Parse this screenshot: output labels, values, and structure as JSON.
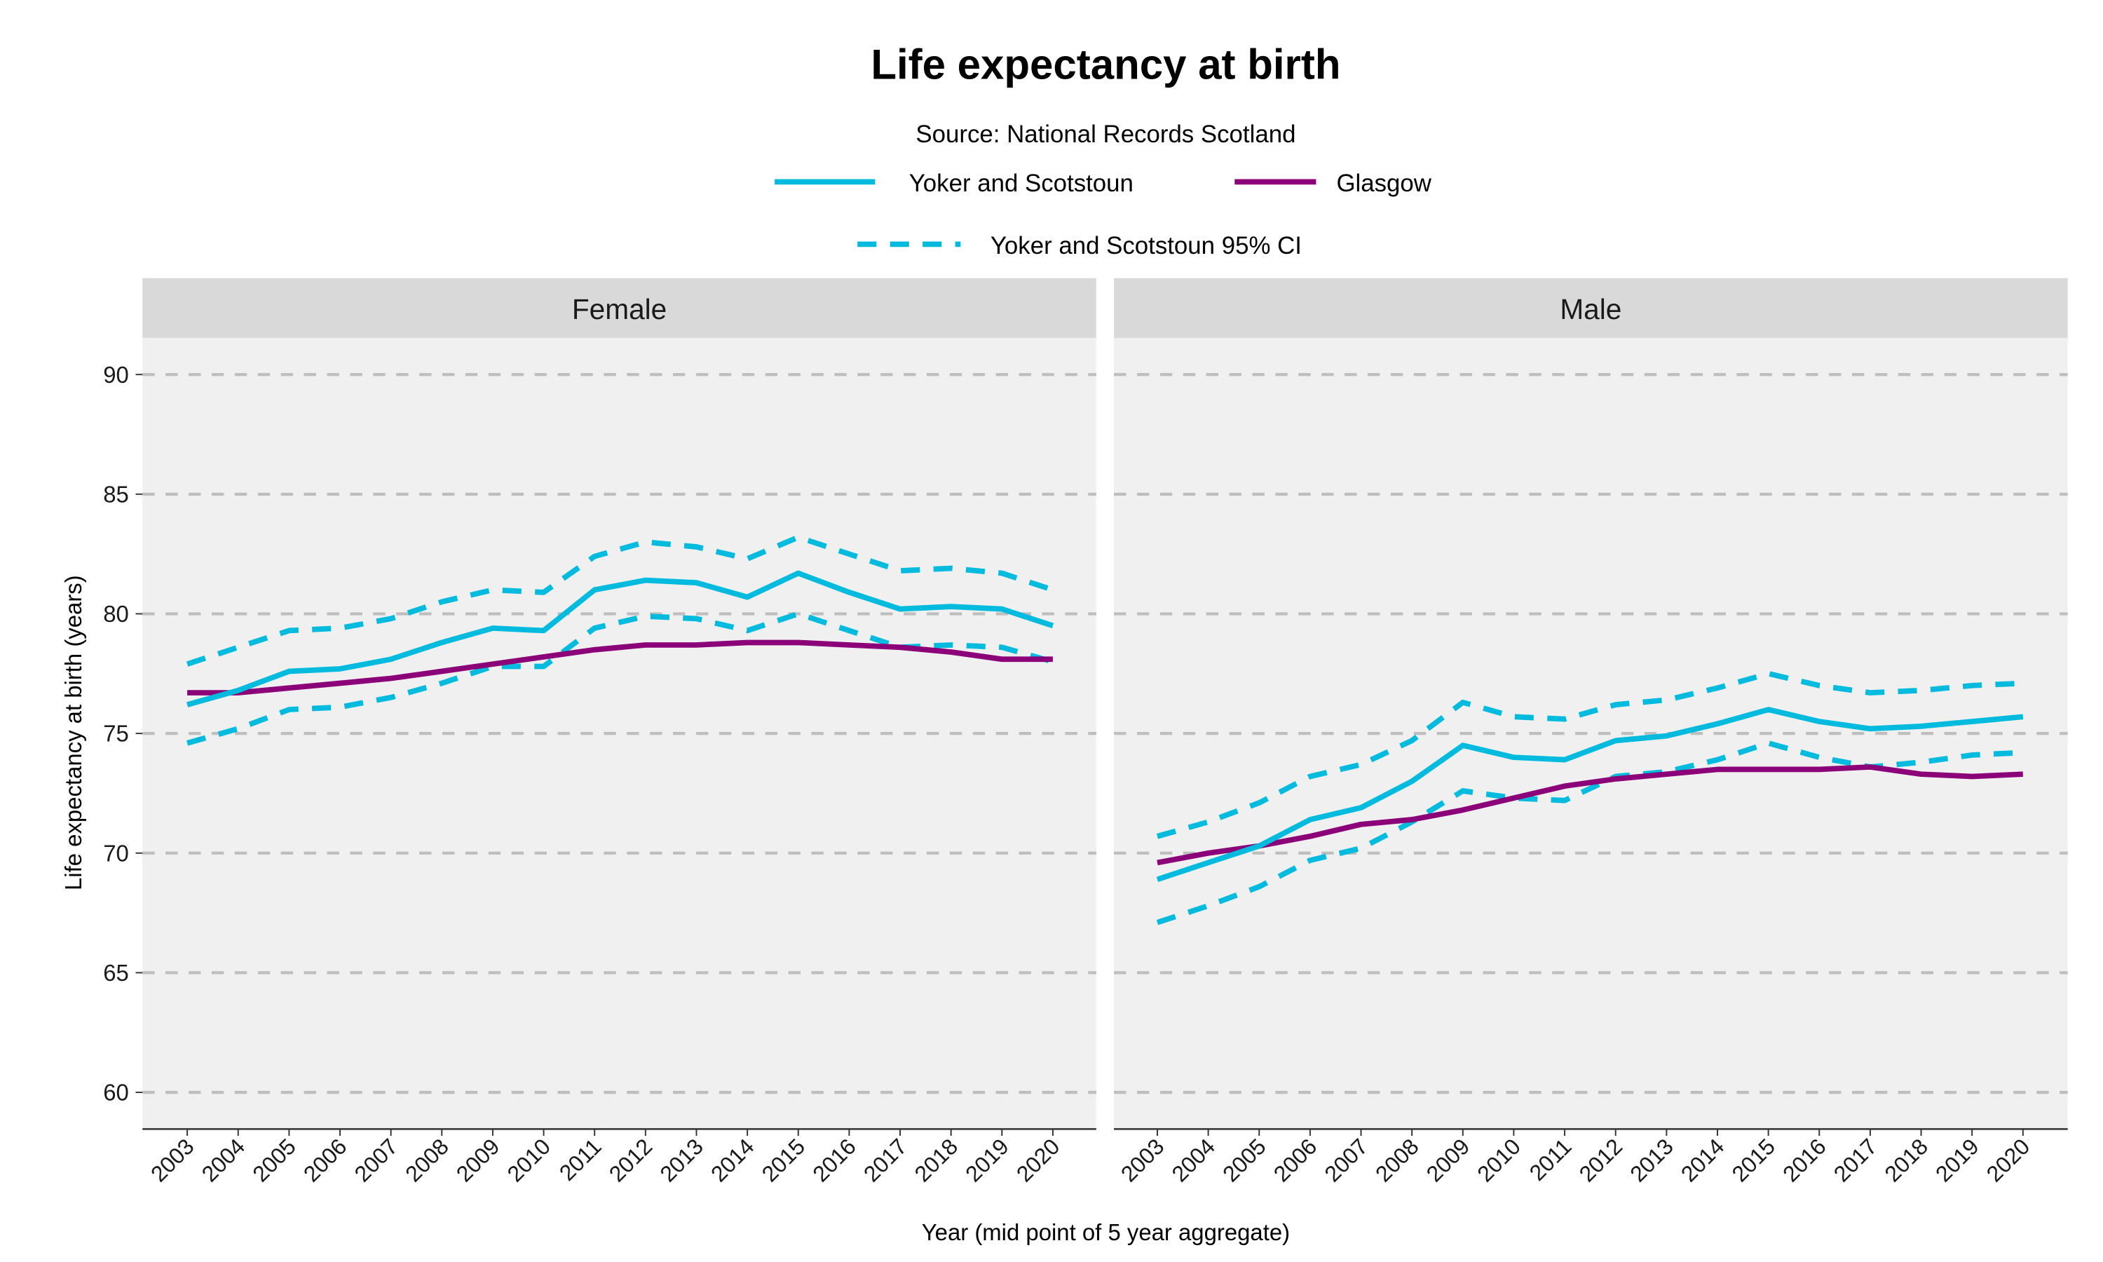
{
  "chart_data": {
    "type": "line",
    "title": "Life expectancy at birth",
    "subtitle": "Source: National Records Scotland",
    "xlabel": "Year (mid point of 5 year aggregate)",
    "ylabel": "Life expectancy at birth (years)",
    "ylim": [
      58.5,
      91.5
    ],
    "yticks": [
      60,
      65,
      70,
      75,
      80,
      85,
      90
    ],
    "grid": true,
    "legend_position": "top",
    "legend": [
      {
        "name": "Yoker and Scotstoun",
        "color": "#00bbde",
        "style": "solid"
      },
      {
        "name": "Glasgow",
        "color": "#8b0078",
        "style": "solid"
      },
      {
        "name": "Yoker and Scotstoun 95% CI",
        "color": "#00bbde",
        "style": "dashed"
      }
    ],
    "x": [
      "2003",
      "2004",
      "2005",
      "2006",
      "2007",
      "2008",
      "2009",
      "2010",
      "2011",
      "2012",
      "2013",
      "2014",
      "2015",
      "2016",
      "2017",
      "2018",
      "2019",
      "2020"
    ],
    "panels": [
      {
        "label": "Female",
        "series": [
          {
            "name": "Yoker and Scotstoun",
            "values": [
              76.2,
              76.8,
              77.6,
              77.7,
              78.1,
              78.8,
              79.4,
              79.3,
              81.0,
              81.4,
              81.3,
              80.7,
              81.7,
              80.9,
              80.2,
              80.3,
              80.2,
              79.5
            ]
          },
          {
            "name": "Glasgow",
            "values": [
              76.7,
              76.7,
              76.9,
              77.1,
              77.3,
              77.6,
              77.9,
              78.2,
              78.5,
              78.7,
              78.7,
              78.8,
              78.8,
              78.7,
              78.6,
              78.4,
              78.1,
              78.1
            ]
          },
          {
            "name": "Yoker and Scotstoun 95% CI",
            "bound": "upper",
            "values": [
              77.9,
              78.6,
              79.3,
              79.4,
              79.8,
              80.5,
              81.0,
              80.9,
              82.4,
              83.0,
              82.8,
              82.3,
              83.2,
              82.5,
              81.8,
              81.9,
              81.7,
              81.0
            ]
          },
          {
            "name": "Yoker and Scotstoun 95% CI",
            "bound": "lower",
            "values": [
              74.6,
              75.2,
              76.0,
              76.1,
              76.5,
              77.1,
              77.8,
              77.8,
              79.4,
              79.9,
              79.8,
              79.3,
              80.0,
              79.3,
              78.6,
              78.7,
              78.6,
              78.0
            ]
          }
        ]
      },
      {
        "label": "Male",
        "series": [
          {
            "name": "Yoker and Scotstoun",
            "values": [
              68.9,
              69.6,
              70.3,
              71.4,
              71.9,
              73.0,
              74.5,
              74.0,
              73.9,
              74.7,
              74.9,
              75.4,
              76.0,
              75.5,
              75.2,
              75.3,
              75.5,
              75.7
            ]
          },
          {
            "name": "Glasgow",
            "values": [
              69.6,
              70.0,
              70.3,
              70.7,
              71.2,
              71.4,
              71.8,
              72.3,
              72.8,
              73.1,
              73.3,
              73.5,
              73.5,
              73.5,
              73.6,
              73.3,
              73.2,
              73.3
            ]
          },
          {
            "name": "Yoker and Scotstoun 95% CI",
            "bound": "upper",
            "values": [
              70.7,
              71.3,
              72.1,
              73.2,
              73.7,
              74.7,
              76.3,
              75.7,
              75.6,
              76.2,
              76.4,
              76.9,
              77.5,
              77.0,
              76.7,
              76.8,
              77.0,
              77.1
            ]
          },
          {
            "name": "Yoker and Scotstoun 95% CI",
            "bound": "lower",
            "values": [
              67.1,
              67.8,
              68.6,
              69.7,
              70.2,
              71.3,
              72.6,
              72.3,
              72.2,
              73.2,
              73.4,
              73.9,
              74.6,
              74.0,
              73.6,
              73.8,
              74.1,
              74.2
            ]
          }
        ]
      }
    ]
  }
}
